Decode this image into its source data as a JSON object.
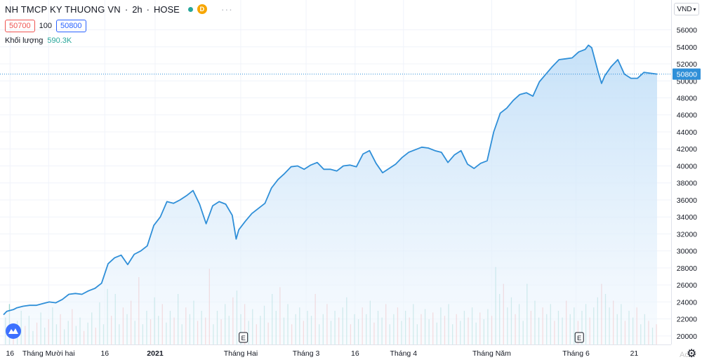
{
  "header": {
    "symbol": "NH TMCP KY THUONG VN",
    "interval": "2h",
    "exchange": "HOSE",
    "badge": "D",
    "bid": "50700",
    "spread": "100",
    "ask": "50800",
    "volume_label": "Khối lượng",
    "volume_value": "590.3K",
    "currency": "VND"
  },
  "corner": {
    "watermark": "Activ"
  },
  "colors": {
    "line": "#2f8fd8",
    "area_top": "#bcdcf7",
    "area_bottom": "#f4f9fe",
    "vol_up": "#26a69a",
    "vol_down": "#ef5350",
    "last_price_bg": "#2f8fd8"
  },
  "chart_data": {
    "type": "area",
    "title": "NH TMCP KY THUONG VN · 2h · HOSE",
    "ylim": [
      19000,
      57200
    ],
    "y_ticks": [
      20000,
      22000,
      24000,
      26000,
      28000,
      30000,
      32000,
      34000,
      36000,
      38000,
      40000,
      42000,
      44000,
      46000,
      48000,
      50000,
      52000,
      54000,
      56000
    ],
    "last_price": 50800,
    "x_range": [
      0,
      100
    ],
    "x_ticks": [
      {
        "x": 1.0,
        "label": "16"
      },
      {
        "x": 6.9,
        "label": "Tháng Mười hai"
      },
      {
        "x": 15.5,
        "label": "16"
      },
      {
        "x": 23.2,
        "label": "2021",
        "bold": true
      },
      {
        "x": 36.3,
        "label": "Tháng Hai"
      },
      {
        "x": 46.3,
        "label": "Tháng 3"
      },
      {
        "x": 53.8,
        "label": "16"
      },
      {
        "x": 61.2,
        "label": "Tháng 4"
      },
      {
        "x": 74.7,
        "label": "Tháng Năm"
      },
      {
        "x": 87.6,
        "label": "Tháng 6"
      },
      {
        "x": 96.5,
        "label": "21"
      }
    ],
    "events": [
      {
        "x": 36.7,
        "label": "E"
      },
      {
        "x": 88.1,
        "label": "E"
      }
    ],
    "series": [
      {
        "values": [
          [
            0,
            22500
          ],
          [
            0.5,
            22900
          ],
          [
            1,
            23000
          ],
          [
            1.5,
            23100
          ],
          [
            2,
            23300
          ],
          [
            3,
            23500
          ],
          [
            4,
            23600
          ],
          [
            5,
            23600
          ],
          [
            6,
            23800
          ],
          [
            7,
            24000
          ],
          [
            8,
            23900
          ],
          [
            9,
            24300
          ],
          [
            10,
            24900
          ],
          [
            11,
            25000
          ],
          [
            12,
            24900
          ],
          [
            13,
            25300
          ],
          [
            14,
            25600
          ],
          [
            15,
            26200
          ],
          [
            16,
            28500
          ],
          [
            17,
            29200
          ],
          [
            18,
            29500
          ],
          [
            19,
            28400
          ],
          [
            20,
            29600
          ],
          [
            21,
            30000
          ],
          [
            22,
            30600
          ],
          [
            23,
            33000
          ],
          [
            24,
            34000
          ],
          [
            25,
            35800
          ],
          [
            26,
            35600
          ],
          [
            27,
            36000
          ],
          [
            28,
            36500
          ],
          [
            29,
            37100
          ],
          [
            30,
            35500
          ],
          [
            31,
            33200
          ],
          [
            32,
            35300
          ],
          [
            33,
            35800
          ],
          [
            34,
            35500
          ],
          [
            35,
            34200
          ],
          [
            35.6,
            31400
          ],
          [
            36,
            32500
          ],
          [
            37,
            33500
          ],
          [
            38,
            34400
          ],
          [
            39,
            35000
          ],
          [
            40,
            35600
          ],
          [
            41,
            37400
          ],
          [
            42,
            38400
          ],
          [
            43,
            39100
          ],
          [
            44,
            39900
          ],
          [
            45,
            40000
          ],
          [
            46,
            39600
          ],
          [
            47,
            40100
          ],
          [
            48,
            40400
          ],
          [
            49,
            39600
          ],
          [
            50,
            39600
          ],
          [
            51,
            39400
          ],
          [
            52,
            40000
          ],
          [
            53,
            40100
          ],
          [
            54,
            39900
          ],
          [
            55,
            41400
          ],
          [
            56,
            41800
          ],
          [
            57,
            40300
          ],
          [
            58,
            39200
          ],
          [
            59,
            39700
          ],
          [
            60,
            40200
          ],
          [
            61,
            41000
          ],
          [
            62,
            41600
          ],
          [
            63,
            41900
          ],
          [
            64,
            42200
          ],
          [
            65,
            42100
          ],
          [
            66,
            41800
          ],
          [
            67,
            41600
          ],
          [
            68,
            40400
          ],
          [
            69,
            41300
          ],
          [
            70,
            41800
          ],
          [
            71,
            40200
          ],
          [
            72,
            39700
          ],
          [
            73,
            40300
          ],
          [
            74,
            40600
          ],
          [
            75,
            44000
          ],
          [
            76,
            46200
          ],
          [
            77,
            46800
          ],
          [
            78,
            47700
          ],
          [
            79,
            48400
          ],
          [
            80,
            48600
          ],
          [
            81,
            48200
          ],
          [
            82,
            49900
          ],
          [
            83,
            50800
          ],
          [
            84,
            51700
          ],
          [
            85,
            52500
          ],
          [
            86,
            52600
          ],
          [
            87,
            52700
          ],
          [
            88,
            53400
          ],
          [
            89,
            53700
          ],
          [
            89.5,
            54200
          ],
          [
            90,
            53900
          ],
          [
            91,
            51000
          ],
          [
            91.5,
            49700
          ],
          [
            92,
            50600
          ],
          [
            93,
            51700
          ],
          [
            94,
            52500
          ],
          [
            95,
            50800
          ],
          [
            96,
            50300
          ],
          [
            97,
            50300
          ],
          [
            98,
            51000
          ],
          [
            99,
            50900
          ],
          [
            100,
            50800
          ]
        ]
      }
    ],
    "volumes": [
      [
        0.3,
        16,
        1
      ],
      [
        0.9,
        24,
        1
      ],
      [
        1.5,
        9,
        0
      ],
      [
        2.1,
        14,
        1
      ],
      [
        2.7,
        20,
        1
      ],
      [
        3.3,
        11,
        0
      ],
      [
        3.9,
        17,
        1
      ],
      [
        4.5,
        8,
        1
      ],
      [
        5.1,
        13,
        0
      ],
      [
        5.7,
        19,
        1
      ],
      [
        6.3,
        10,
        1
      ],
      [
        6.9,
        15,
        0
      ],
      [
        7.5,
        22,
        1
      ],
      [
        8.1,
        12,
        1
      ],
      [
        8.7,
        18,
        0
      ],
      [
        9.3,
        9,
        1
      ],
      [
        9.9,
        14,
        1
      ],
      [
        10.5,
        21,
        0
      ],
      [
        11.1,
        11,
        1
      ],
      [
        11.7,
        16,
        1
      ],
      [
        12.3,
        8,
        0
      ],
      [
        12.9,
        13,
        1
      ],
      [
        13.5,
        19,
        1
      ],
      [
        14.1,
        10,
        0
      ],
      [
        14.7,
        25,
        1
      ],
      [
        15.3,
        12,
        1
      ],
      [
        15.9,
        33,
        1
      ],
      [
        16.5,
        17,
        0
      ],
      [
        17.1,
        30,
        1
      ],
      [
        17.7,
        12,
        1
      ],
      [
        18.3,
        22,
        0
      ],
      [
        18.9,
        18,
        1
      ],
      [
        19.5,
        26,
        0
      ],
      [
        20.1,
        14,
        1
      ],
      [
        20.7,
        40,
        0
      ],
      [
        21.3,
        12,
        1
      ],
      [
        21.9,
        20,
        1
      ],
      [
        22.5,
        15,
        0
      ],
      [
        23.1,
        28,
        1
      ],
      [
        23.7,
        17,
        1
      ],
      [
        24.3,
        24,
        0
      ],
      [
        24.9,
        13,
        1
      ],
      [
        25.5,
        20,
        1
      ],
      [
        26.1,
        16,
        0
      ],
      [
        26.7,
        30,
        1
      ],
      [
        27.3,
        12,
        1
      ],
      [
        27.9,
        22,
        0
      ],
      [
        28.5,
        18,
        1
      ],
      [
        29.1,
        26,
        1
      ],
      [
        29.7,
        14,
        0
      ],
      [
        30.3,
        20,
        1
      ],
      [
        30.9,
        16,
        0
      ],
      [
        31.5,
        45,
        0
      ],
      [
        32.1,
        12,
        1
      ],
      [
        32.7,
        20,
        1
      ],
      [
        33.3,
        15,
        0
      ],
      [
        33.9,
        24,
        1
      ],
      [
        34.5,
        17,
        1
      ],
      [
        35.1,
        28,
        0
      ],
      [
        35.7,
        32,
        1
      ],
      [
        36.3,
        18,
        1
      ],
      [
        36.9,
        24,
        0
      ],
      [
        37.5,
        14,
        1
      ],
      [
        38.1,
        21,
        1
      ],
      [
        38.7,
        12,
        0
      ],
      [
        39.3,
        17,
        1
      ],
      [
        39.9,
        23,
        1
      ],
      [
        40.5,
        13,
        0
      ],
      [
        41.1,
        30,
        1
      ],
      [
        41.7,
        20,
        1
      ],
      [
        42.3,
        34,
        0
      ],
      [
        42.9,
        16,
        1
      ],
      [
        43.5,
        24,
        1
      ],
      [
        44.1,
        12,
        0
      ],
      [
        44.7,
        18,
        1
      ],
      [
        45.3,
        22,
        1
      ],
      [
        45.9,
        14,
        0
      ],
      [
        46.5,
        20,
        1
      ],
      [
        47.1,
        17,
        1
      ],
      [
        47.7,
        30,
        0
      ],
      [
        48.3,
        12,
        1
      ],
      [
        48.9,
        18,
        1
      ],
      [
        49.5,
        24,
        0
      ],
      [
        50.1,
        14,
        1
      ],
      [
        50.7,
        20,
        1
      ],
      [
        51.3,
        16,
        0
      ],
      [
        51.9,
        22,
        1
      ],
      [
        52.5,
        28,
        1
      ],
      [
        53.1,
        12,
        0
      ],
      [
        53.7,
        18,
        1
      ],
      [
        54.3,
        15,
        1
      ],
      [
        54.9,
        22,
        0
      ],
      [
        55.5,
        18,
        1
      ],
      [
        56.1,
        26,
        1
      ],
      [
        56.7,
        13,
        0
      ],
      [
        57.3,
        20,
        1
      ],
      [
        57.9,
        16,
        1
      ],
      [
        58.5,
        24,
        0
      ],
      [
        59.1,
        12,
        1
      ],
      [
        59.7,
        18,
        1
      ],
      [
        60.3,
        22,
        0
      ],
      [
        60.9,
        14,
        1
      ],
      [
        61.5,
        20,
        1
      ],
      [
        62.1,
        16,
        0
      ],
      [
        62.7,
        24,
        1
      ],
      [
        63.3,
        12,
        1
      ],
      [
        63.9,
        18,
        0
      ],
      [
        64.5,
        21,
        1
      ],
      [
        65.1,
        15,
        1
      ],
      [
        65.7,
        19,
        0
      ],
      [
        66.3,
        13,
        1
      ],
      [
        66.9,
        22,
        1
      ],
      [
        67.5,
        17,
        0
      ],
      [
        68.1,
        24,
        1
      ],
      [
        68.7,
        12,
        1
      ],
      [
        69.3,
        18,
        0
      ],
      [
        69.9,
        14,
        1
      ],
      [
        70.5,
        20,
        1
      ],
      [
        71.1,
        16,
        0
      ],
      [
        71.7,
        22,
        1
      ],
      [
        72.3,
        13,
        1
      ],
      [
        72.9,
        19,
        0
      ],
      [
        73.5,
        15,
        1
      ],
      [
        74.1,
        21,
        1
      ],
      [
        74.7,
        17,
        0
      ],
      [
        75.3,
        46,
        1
      ],
      [
        75.9,
        30,
        1
      ],
      [
        76.5,
        36,
        0
      ],
      [
        77.1,
        22,
        1
      ],
      [
        77.7,
        28,
        1
      ],
      [
        78.3,
        18,
        0
      ],
      [
        78.9,
        24,
        1
      ],
      [
        79.5,
        14,
        1
      ],
      [
        80.1,
        36,
        1
      ],
      [
        80.7,
        20,
        0
      ],
      [
        81.3,
        26,
        1
      ],
      [
        81.9,
        16,
        1
      ],
      [
        82.5,
        22,
        0
      ],
      [
        83.1,
        18,
        1
      ],
      [
        83.7,
        24,
        1
      ],
      [
        84.3,
        14,
        0
      ],
      [
        84.9,
        20,
        1
      ],
      [
        85.5,
        16,
        1
      ],
      [
        86.1,
        26,
        0
      ],
      [
        86.7,
        18,
        1
      ],
      [
        87.3,
        22,
        1
      ],
      [
        87.9,
        14,
        0
      ],
      [
        88.5,
        20,
        1
      ],
      [
        89.1,
        24,
        1
      ],
      [
        89.7,
        16,
        0
      ],
      [
        90.3,
        22,
        1
      ],
      [
        90.9,
        28,
        1
      ],
      [
        91.5,
        36,
        0
      ],
      [
        92.1,
        30,
        1
      ],
      [
        92.7,
        22,
        1
      ],
      [
        93.3,
        26,
        0
      ],
      [
        93.9,
        18,
        1
      ],
      [
        94.5,
        24,
        1
      ],
      [
        95.1,
        14,
        0
      ],
      [
        95.7,
        20,
        1
      ],
      [
        96.3,
        16,
        1
      ],
      [
        96.9,
        22,
        0
      ],
      [
        97.5,
        12,
        1
      ],
      [
        98.1,
        18,
        1
      ],
      [
        98.7,
        14,
        0
      ],
      [
        99.3,
        10,
        1
      ],
      [
        99.9,
        12,
        0
      ]
    ]
  }
}
